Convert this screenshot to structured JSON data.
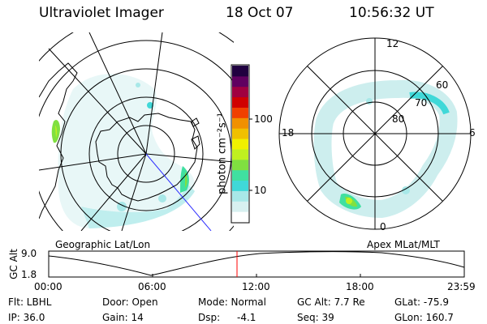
{
  "header": {
    "instrument": "Ultraviolet Imager",
    "date": "18 Oct 07",
    "time": "10:56:32 UT"
  },
  "colorbar": {
    "unit_label": "photon cm⁻²s⁻¹",
    "ticks": [
      "100",
      "10"
    ],
    "colors": [
      "#ffffff",
      "#d8f0f0",
      "#a8e8e8",
      "#40d8d8",
      "#40e0a0",
      "#80e040",
      "#c0f020",
      "#f0f000",
      "#f0c000",
      "#f09000",
      "#f04000",
      "#d00000",
      "#a00040",
      "#600060",
      "#200040"
    ]
  },
  "geo_map": {
    "label": "Geographic Lat/Lon"
  },
  "polar_map": {
    "label": "Apex MLat/MLT",
    "mlt_labels": {
      "top": "12",
      "left": "18",
      "right": "6",
      "bottom": "0"
    },
    "lat_labels": [
      "60",
      "70",
      "80"
    ]
  },
  "altitude_plot": {
    "ylabel": "GC Alt",
    "yticks": [
      "9.0",
      "1.8"
    ],
    "xticks": [
      "00:00",
      "06:00",
      "12:00",
      "18:00",
      "23:59"
    ],
    "marker_time": "10:56"
  },
  "info": {
    "filter": "Flt: LBHL",
    "ip": "IP: 36.0",
    "door": "Door: Open",
    "gain": "Gain: 14",
    "mode": "Mode: Normal",
    "dsp_label": "Dsp:",
    "dsp_value": "-4.1",
    "gc_alt": "GC Alt: 7.7 Re",
    "seq": "Seq: 39",
    "glat": "GLat: -75.9",
    "glon": "GLon: 160.7"
  }
}
